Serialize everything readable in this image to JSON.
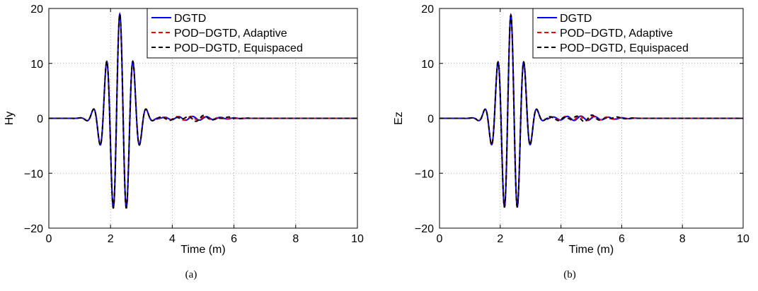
{
  "chart_data": [
    {
      "type": "line",
      "panel": "a",
      "caption": "(a)",
      "title": "",
      "xlabel": "Time (m)",
      "ylabel": "Hy",
      "xlim": [
        0,
        10
      ],
      "ylim": [
        -20,
        20
      ],
      "xticks": [
        0,
        2,
        4,
        6,
        8,
        10
      ],
      "yticks": [
        -20,
        -10,
        0,
        10,
        20
      ],
      "xtick_labels": [
        "0",
        "2",
        "4",
        "6",
        "8",
        "10"
      ],
      "ytick_labels": [
        "−20",
        "−10",
        "0",
        "10",
        "20"
      ],
      "grid": true,
      "legend_position": "top-right",
      "waveform": {
        "center": 2.3,
        "width": 0.55,
        "frequency": 2.3,
        "amplitude": 19,
        "tail_amplitude": 0.35
      },
      "series": [
        {
          "name": "DGTD",
          "color": "#0000ff",
          "dash": "solid"
        },
        {
          "name": "POD−DGTD, Adaptive",
          "color": "#ff0000",
          "dash": "dashed"
        },
        {
          "name": "POD−DGTD, Equispaced",
          "color": "#000000",
          "dash": "dashed"
        }
      ]
    },
    {
      "type": "line",
      "panel": "b",
      "caption": "(b)",
      "title": "",
      "xlabel": "Time (m)",
      "ylabel": "Ez",
      "xlim": [
        0,
        10
      ],
      "ylim": [
        -20,
        20
      ],
      "xticks": [
        0,
        2,
        4,
        6,
        8,
        10
      ],
      "yticks": [
        -20,
        -10,
        0,
        10,
        20
      ],
      "xtick_labels": [
        "0",
        "2",
        "4",
        "6",
        "8",
        "10"
      ],
      "ytick_labels": [
        "−20",
        "−10",
        "0",
        "10",
        "20"
      ],
      "grid": true,
      "legend_position": "top-right",
      "waveform": {
        "center": 2.35,
        "width": 0.55,
        "frequency": 2.3,
        "amplitude": 18.8,
        "tail_amplitude": 0.4
      },
      "series": [
        {
          "name": "DGTD",
          "color": "#0000ff",
          "dash": "solid"
        },
        {
          "name": "POD−DGTD, Adaptive",
          "color": "#ff0000",
          "dash": "dashed"
        },
        {
          "name": "POD−DGTD, Equispaced",
          "color": "#000000",
          "dash": "dashed"
        }
      ]
    }
  ]
}
